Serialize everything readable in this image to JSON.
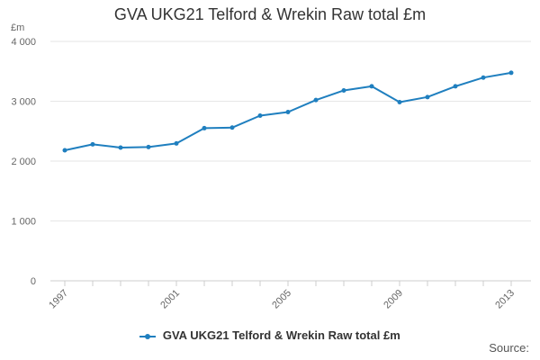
{
  "colors": {
    "series": "#1f7fbf",
    "grid": "#e6e6e6",
    "axis_text": "#666666"
  },
  "chart_data": {
    "type": "line",
    "title": "GVA UKG21 Telford & Wrekin Raw total £m",
    "ylabel": "£m",
    "xlabel": "",
    "ylim": [
      0,
      4000
    ],
    "xlim": [
      1997,
      2013
    ],
    "yticks": [
      0,
      1000,
      2000,
      3000,
      4000
    ],
    "ytick_labels": [
      "0",
      "1 000",
      "2 000",
      "3 000",
      "4 000"
    ],
    "xticks": [
      1997,
      2001,
      2005,
      2009,
      2013
    ],
    "xtick_labels": [
      "1997",
      "2001",
      "2005",
      "2009",
      "2013"
    ],
    "grid": true,
    "legend_position": "bottom",
    "series": [
      {
        "name": "GVA UKG21 Telford & Wrekin Raw total £m",
        "x": [
          1997,
          1998,
          1999,
          2000,
          2001,
          2002,
          2003,
          2004,
          2005,
          2006,
          2007,
          2008,
          2009,
          2010,
          2011,
          2012,
          2013
        ],
        "values": [
          2180,
          2280,
          2225,
          2235,
          2295,
          2550,
          2560,
          2760,
          2820,
          3020,
          3180,
          3250,
          2985,
          3070,
          3250,
          3395,
          3475
        ]
      }
    ]
  },
  "source_label": "Source:"
}
